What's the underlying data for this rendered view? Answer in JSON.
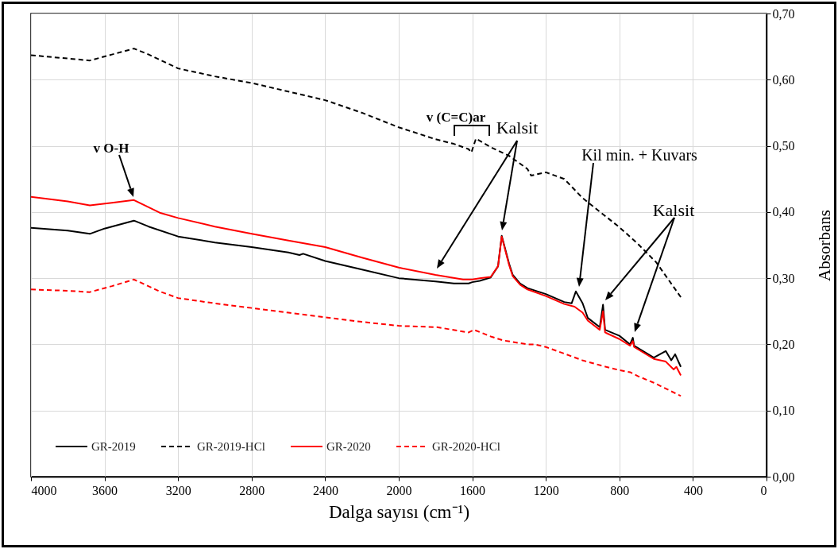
{
  "chart_data": {
    "type": "line",
    "xlabel": "Dalga sayısı (cm⁻¹)",
    "ylabel": "Absorbans",
    "xlim": [
      4000,
      0
    ],
    "xticks": [
      4000,
      3600,
      3200,
      2800,
      2400,
      2000,
      1600,
      1200,
      800,
      400,
      0
    ],
    "ylim": [
      0,
      0.7
    ],
    "yticks": [
      {
        "value": 0,
        "label": "0,00"
      },
      {
        "value": 0.1,
        "label": "0,10"
      },
      {
        "value": 0.2,
        "label": "0,20"
      },
      {
        "value": 0.3,
        "label": "0,30"
      },
      {
        "value": 0.4,
        "label": "0,40"
      },
      {
        "value": 0.5,
        "label": "0,50"
      },
      {
        "value": 0.6,
        "label": "0,60"
      },
      {
        "value": 0.7,
        "label": "0,70"
      }
    ],
    "grid": true,
    "legend": "bottom left",
    "series": [
      {
        "name": "GR-2019",
        "color": "#000000",
        "line_style": "solid",
        "x": [
          4000,
          3800,
          3680,
          3600,
          3440,
          3360,
          3200,
          3000,
          2800,
          2600,
          2540,
          2520,
          2400,
          2200,
          2000,
          1800,
          1700,
          1620,
          1600,
          1560,
          1500,
          1460,
          1440,
          1400,
          1380,
          1340,
          1300,
          1200,
          1100,
          1060,
          1037,
          1000,
          972,
          907,
          889,
          878,
          800,
          742,
          727,
          720,
          613,
          548,
          518,
          497,
          466
        ],
        "values": [
          0.376,
          0.372,
          0.367,
          0.375,
          0.387,
          0.378,
          0.363,
          0.354,
          0.347,
          0.339,
          0.335,
          0.337,
          0.326,
          0.313,
          0.3,
          0.295,
          0.292,
          0.292,
          0.294,
          0.296,
          0.301,
          0.318,
          0.364,
          0.322,
          0.305,
          0.292,
          0.285,
          0.276,
          0.264,
          0.262,
          0.28,
          0.262,
          0.24,
          0.226,
          0.26,
          0.222,
          0.213,
          0.2,
          0.21,
          0.198,
          0.18,
          0.19,
          0.176,
          0.185,
          0.166
        ]
      },
      {
        "name": "GR-2019-HCl",
        "color": "#000000",
        "line_style": "dashed",
        "x": [
          4000,
          3800,
          3680,
          3560,
          3440,
          3360,
          3200,
          3000,
          2800,
          2600,
          2400,
          2200,
          2000,
          1800,
          1700,
          1620,
          1605,
          1580,
          1500,
          1400,
          1300,
          1280,
          1200,
          1100,
          1000,
          900,
          800,
          700,
          600,
          460
        ],
        "values": [
          0.637,
          0.632,
          0.629,
          0.638,
          0.647,
          0.638,
          0.617,
          0.605,
          0.595,
          0.582,
          0.569,
          0.55,
          0.528,
          0.51,
          0.503,
          0.495,
          0.49,
          0.511,
          0.498,
          0.485,
          0.465,
          0.455,
          0.46,
          0.45,
          0.421,
          0.399,
          0.377,
          0.352,
          0.324,
          0.269
        ]
      },
      {
        "name": "GR-2020",
        "color": "#ff0000",
        "line_style": "solid",
        "x": [
          4000,
          3800,
          3680,
          3560,
          3440,
          3300,
          3200,
          3000,
          2800,
          2600,
          2400,
          2200,
          2000,
          1800,
          1650,
          1600,
          1560,
          1500,
          1460,
          1440,
          1400,
          1380,
          1340,
          1300,
          1200,
          1100,
          1044,
          1000,
          972,
          907,
          889,
          878,
          800,
          742,
          727,
          720,
          613,
          548,
          505,
          490,
          466
        ],
        "values": [
          0.423,
          0.416,
          0.41,
          0.414,
          0.418,
          0.399,
          0.391,
          0.378,
          0.367,
          0.357,
          0.347,
          0.331,
          0.316,
          0.305,
          0.298,
          0.298,
          0.3,
          0.302,
          0.318,
          0.363,
          0.32,
          0.303,
          0.29,
          0.283,
          0.273,
          0.261,
          0.257,
          0.248,
          0.236,
          0.222,
          0.25,
          0.218,
          0.208,
          0.198,
          0.205,
          0.196,
          0.178,
          0.174,
          0.162,
          0.166,
          0.153
        ]
      },
      {
        "name": "GR-2020-HCl",
        "color": "#ff0000",
        "line_style": "dashed",
        "x": [
          4000,
          3800,
          3680,
          3560,
          3440,
          3300,
          3200,
          3000,
          2800,
          2600,
          2400,
          2200,
          2000,
          1793,
          1620,
          1591,
          1500,
          1433,
          1300,
          1260,
          1200,
          1100,
          1002,
          900,
          800,
          742,
          700,
          613,
          466
        ],
        "values": [
          0.283,
          0.281,
          0.279,
          0.288,
          0.298,
          0.28,
          0.27,
          0.262,
          0.255,
          0.248,
          0.241,
          0.234,
          0.228,
          0.226,
          0.218,
          0.222,
          0.212,
          0.206,
          0.2,
          0.2,
          0.196,
          0.186,
          0.176,
          0.168,
          0.161,
          0.158,
          0.152,
          0.142,
          0.122
        ]
      }
    ],
    "annotations": [
      "v O-H",
      "v (C=C)ar",
      "Kalsit",
      "Kil min. + Kuvars",
      "Kalsit"
    ]
  }
}
